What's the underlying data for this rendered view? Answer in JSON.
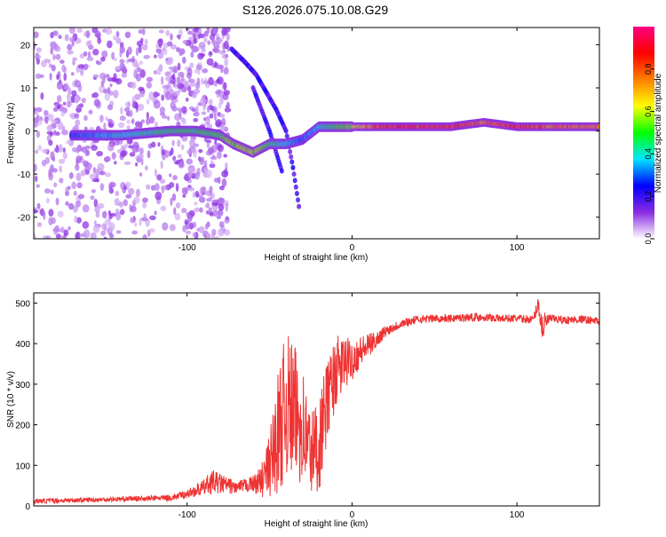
{
  "title": "S126.2026.075.10.08.G29",
  "chart_data": [
    {
      "type": "heatmap",
      "xlabel": "Height of straight line (km)",
      "ylabel": "Frequency (Hz)",
      "xlim": [
        -193,
        150
      ],
      "ylim": [
        -25,
        24
      ],
      "xticks": [
        -100,
        0,
        100
      ],
      "yticks": [
        -20,
        -10,
        0,
        10,
        20
      ],
      "colorbar": {
        "label": "Normalized spectral amplitude",
        "range": [
          0,
          1
        ],
        "ticks": [
          "0.0",
          "0.2",
          "0.4",
          "0.6",
          "0.8"
        ],
        "stops": [
          "#ffffff",
          "#8a2be2",
          "#0000ff",
          "#00e5ff",
          "#00ff00",
          "#ffff00",
          "#ff7f00",
          "#ff0000",
          "#ff0080"
        ]
      },
      "features": [
        {
          "name": "main tone",
          "x": [
            -170,
            -140,
            -110,
            -95,
            -80,
            -72,
            -60,
            -50,
            -40,
            -30,
            -20,
            -10,
            0,
            20,
            60,
            80,
            100,
            120,
            150
          ],
          "y": [
            -1,
            -1,
            0,
            0,
            -1,
            -3,
            -5,
            -3,
            -3,
            -2,
            1,
            1,
            1,
            1,
            1,
            2,
            1,
            1,
            1
          ],
          "amplitude": [
            0.3,
            0.4,
            0.5,
            0.5,
            0.5,
            0.6,
            0.6,
            0.5,
            0.4,
            0.3,
            0.4,
            0.5,
            0.6,
            0.9,
            0.9,
            0.8,
            0.9,
            0.8,
            0.8
          ]
        },
        {
          "name": "upper descending arc",
          "x": [
            -73,
            -65,
            -58,
            -52,
            -46,
            -40,
            -36,
            -32
          ],
          "y": [
            19,
            16,
            13,
            9,
            5,
            0,
            -8,
            -18
          ]
        },
        {
          "name": "lower descending arc",
          "x": [
            -60,
            -55,
            -50,
            -46,
            -42
          ],
          "y": [
            10,
            5,
            0,
            -5,
            -10
          ]
        }
      ]
    },
    {
      "type": "line",
      "xlabel": "Height of straight line (km)",
      "ylabel": "SNR (10 * v/v)",
      "xlim": [
        -193,
        150
      ],
      "ylim": [
        0,
        525
      ],
      "xticks": [
        -100,
        0,
        100
      ],
      "yticks": [
        0,
        100,
        200,
        300,
        400,
        500
      ],
      "color": "#ee3333",
      "series": [
        {
          "name": "SNR",
          "x": [
            -193,
            -170,
            -150,
            -130,
            -110,
            -100,
            -90,
            -85,
            -80,
            -70,
            -60,
            -55,
            -50,
            -45,
            -40,
            -35,
            -30,
            -25,
            -20,
            -15,
            -10,
            -5,
            0,
            5,
            10,
            15,
            20,
            25,
            30,
            40,
            50,
            60,
            70,
            80,
            90,
            100,
            105,
            110,
            113,
            115,
            120,
            130,
            140,
            150
          ],
          "y": [
            12,
            14,
            16,
            18,
            20,
            30,
            45,
            60,
            55,
            45,
            55,
            60,
            100,
            180,
            250,
            230,
            200,
            130,
            150,
            260,
            330,
            350,
            360,
            380,
            395,
            410,
            430,
            440,
            450,
            460,
            462,
            462,
            465,
            465,
            462,
            462,
            460,
            460,
            500,
            440,
            462,
            458,
            460,
            455
          ],
          "amp": [
            6,
            6,
            6,
            6,
            8,
            10,
            20,
            30,
            25,
            15,
            20,
            40,
            80,
            150,
            180,
            170,
            150,
            110,
            120,
            100,
            90,
            70,
            50,
            40,
            30,
            20,
            15,
            12,
            12,
            10,
            10,
            10,
            10,
            10,
            10,
            10,
            10,
            10,
            20,
            40,
            10,
            10,
            10,
            10
          ]
        }
      ]
    }
  ]
}
